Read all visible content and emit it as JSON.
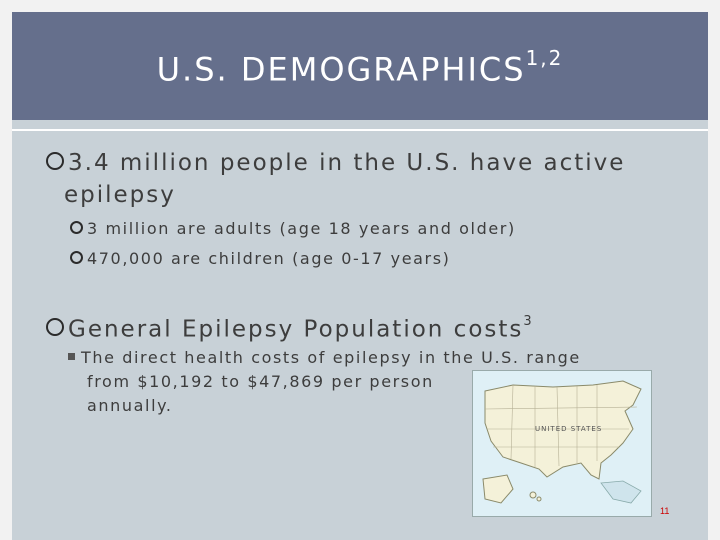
{
  "title": {
    "main": "U.S. DEMOGRAPHICS",
    "superscript": "1,2"
  },
  "bullets": [
    {
      "text_line1": "3.4 million people in the U.S. have active",
      "text_line2": "epilepsy",
      "sub": [
        "3 million are adults (age 18 years and older)",
        "470,000 are children (age 0-17 years)"
      ]
    },
    {
      "text": "General Epilepsy Population costs",
      "superscript": "3",
      "sub_line1": "The direct health costs of epilepsy in the U.S. range",
      "sub_line2": "from $10,192 to $47,869 per person",
      "sub_line3": "annually."
    }
  ],
  "map": {
    "label": "UNITED STATES",
    "icon": "us-map-image"
  },
  "page_number": "11",
  "colors": {
    "title_band": "#656f8c",
    "slide_bg": "#c8d1d7",
    "page_number": "#cc0000"
  }
}
